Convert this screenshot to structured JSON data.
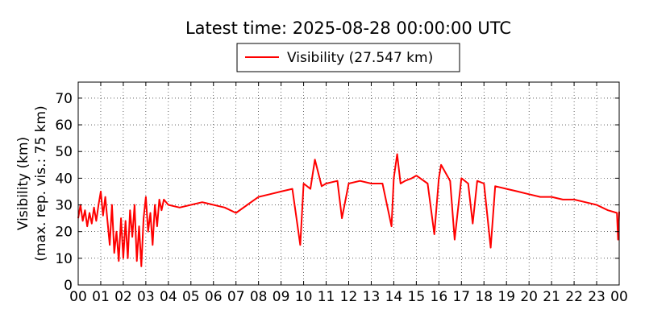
{
  "chart_data": {
    "type": "line",
    "title": "Latest time: 2025-08-28 00:00:00 UTC",
    "ylabel_line1": "Visibility (km)",
    "ylabel_line2": "(max. rep. vis.: 75 km)",
    "xlim": [
      0,
      24
    ],
    "ylim": [
      0,
      76
    ],
    "x_ticks": [
      "00",
      "01",
      "02",
      "03",
      "04",
      "05",
      "06",
      "07",
      "08",
      "09",
      "10",
      "11",
      "12",
      "13",
      "14",
      "15",
      "16",
      "17",
      "18",
      "19",
      "20",
      "21",
      "22",
      "23",
      "00"
    ],
    "y_ticks": [
      0,
      10,
      20,
      30,
      40,
      50,
      60,
      70
    ],
    "grid": true,
    "legend_position": "top-center",
    "series": [
      {
        "name": "Visibility (27.547 km)",
        "color": "#ff0000",
        "x": [
          0.0,
          0.1,
          0.2,
          0.3,
          0.4,
          0.5,
          0.6,
          0.7,
          0.8,
          0.9,
          1.0,
          1.1,
          1.2,
          1.3,
          1.4,
          1.5,
          1.6,
          1.7,
          1.8,
          1.9,
          2.0,
          2.1,
          2.2,
          2.3,
          2.4,
          2.5,
          2.6,
          2.7,
          2.8,
          2.9,
          3.0,
          3.1,
          3.2,
          3.3,
          3.4,
          3.5,
          3.6,
          3.7,
          3.8,
          4.0,
          4.5,
          5.0,
          5.5,
          6.0,
          6.5,
          7.0,
          7.5,
          8.0,
          8.5,
          9.0,
          9.5,
          9.85,
          10.0,
          10.3,
          10.5,
          10.8,
          11.0,
          11.5,
          11.7,
          12.0,
          12.5,
          13.0,
          13.5,
          13.9,
          14.0,
          14.15,
          14.3,
          14.5,
          14.8,
          15.0,
          15.5,
          15.8,
          16.0,
          16.1,
          16.5,
          16.7,
          17.0,
          17.3,
          17.5,
          17.7,
          18.0,
          18.3,
          18.5,
          19.0,
          19.5,
          20.0,
          20.5,
          21.0,
          21.5,
          22.0,
          22.5,
          23.0,
          23.5,
          23.9,
          23.95,
          24.0
        ],
        "y": [
          25,
          30,
          24,
          28,
          22,
          27,
          23,
          29,
          24,
          30,
          35,
          26,
          33,
          24,
          15,
          30,
          12,
          20,
          9,
          25,
          10,
          24,
          10,
          28,
          18,
          30,
          9,
          22,
          7,
          25,
          33,
          20,
          27,
          15,
          30,
          22,
          32,
          28,
          32,
          30,
          29,
          30,
          31,
          30,
          29,
          27,
          30,
          33,
          34,
          35,
          36,
          15,
          38,
          36,
          47,
          37,
          38,
          39,
          25,
          38,
          39,
          38,
          38,
          22,
          40,
          49,
          38,
          39,
          40,
          41,
          38,
          19,
          40,
          45,
          39,
          17,
          40,
          38,
          23,
          39,
          38,
          14,
          37,
          36,
          35,
          34,
          33,
          33,
          32,
          32,
          31,
          30,
          28,
          27,
          17,
          27.5
        ]
      }
    ]
  }
}
